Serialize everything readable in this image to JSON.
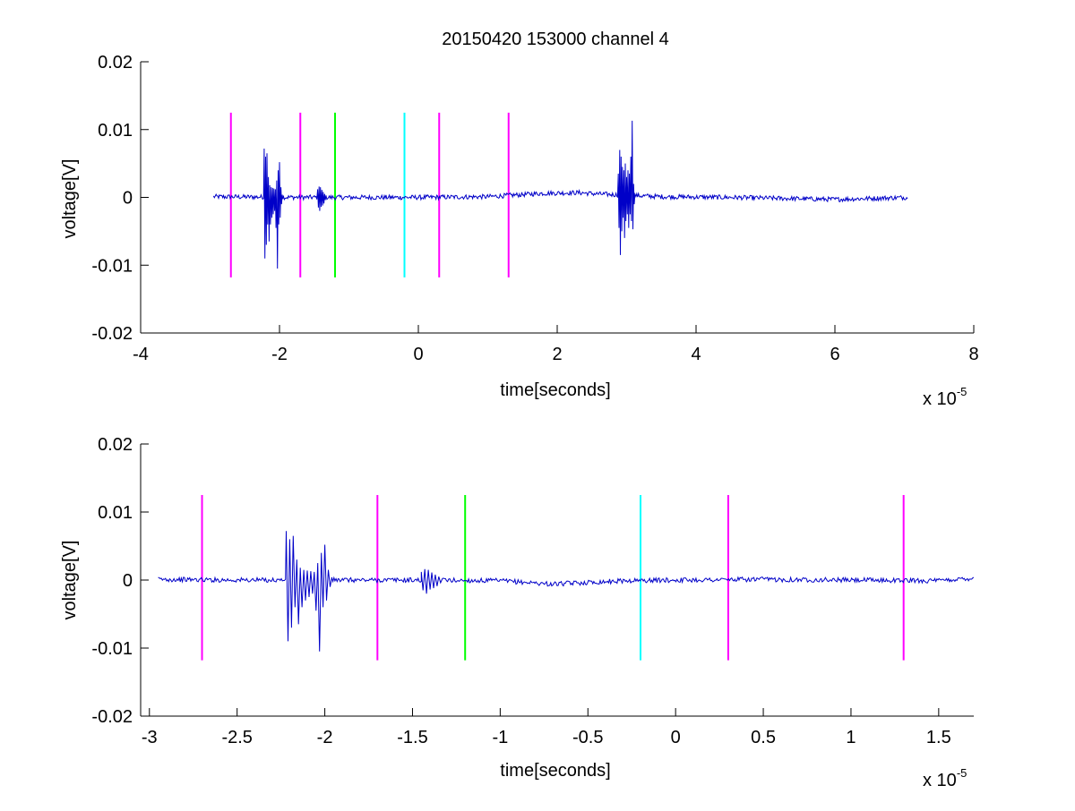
{
  "title": "20150420 153000 channel 4",
  "colors": {
    "signal": "#0000c8",
    "magenta": "#ff00ff",
    "green": "#00ff00",
    "cyan": "#00ffff",
    "axis": "#000000"
  },
  "chart_data": [
    {
      "type": "line",
      "title": "20150420 153000 channel 4",
      "xlabel": "time[seconds]",
      "ylabel": "voltage[V]",
      "x_multiplier_label": "x 10",
      "x_multiplier_exponent": "-5",
      "xlim": [
        -4,
        8
      ],
      "ylim": [
        -0.02,
        0.02
      ],
      "x_ticks": [
        -4,
        -2,
        0,
        2,
        4,
        6,
        8
      ],
      "x_tick_labels": [
        "-4",
        "-2",
        "0",
        "2",
        "4",
        "6",
        "8"
      ],
      "y_ticks": [
        0.02,
        0.01,
        0,
        -0.01,
        -0.02
      ],
      "y_tick_labels": [
        "0.02",
        "0.01",
        "0",
        "-0.01",
        "-0.02"
      ],
      "grid": false,
      "signal_range": [
        -2.95,
        7.05
      ],
      "markers": [
        {
          "x": -2.7,
          "color": "magenta",
          "ymin": -0.0118,
          "ymax": 0.0125
        },
        {
          "x": -1.7,
          "color": "magenta",
          "ymin": -0.0118,
          "ymax": 0.0125
        },
        {
          "x": -1.2,
          "color": "green",
          "ymin": -0.0118,
          "ymax": 0.0125
        },
        {
          "x": -0.2,
          "color": "cyan",
          "ymin": -0.0118,
          "ymax": 0.0125
        },
        {
          "x": 0.3,
          "color": "magenta",
          "ymin": -0.0118,
          "ymax": 0.0125
        },
        {
          "x": 1.3,
          "color": "magenta",
          "ymin": -0.0118,
          "ymax": 0.0125
        }
      ],
      "bursts": [
        {
          "x": [
            -2.22,
            -2.21,
            -2.2,
            -2.19,
            -2.18,
            -2.17,
            -2.16,
            -2.15,
            -2.14,
            -2.13,
            -2.12,
            -2.11,
            -2.1,
            -2.09,
            -2.08,
            -2.07,
            -2.06,
            -2.05,
            -2.04,
            -2.03,
            -2.02,
            -2.01,
            -2.0,
            -1.99,
            -1.98,
            -1.97,
            -1.96
          ],
          "y": [
            0.0072,
            -0.009,
            0.006,
            -0.007,
            0.0065,
            -0.004,
            0.003,
            -0.0065,
            0.0018,
            -0.004,
            0.0015,
            -0.003,
            0.0014,
            -0.0025,
            0.0013,
            -0.002,
            0.0012,
            -0.0045,
            0.0025,
            -0.0105,
            0.004,
            -0.004,
            0.0052,
            -0.003,
            0.0015,
            -0.001,
            0.0004
          ]
        },
        {
          "x": [
            -1.45,
            -1.44,
            -1.43,
            -1.42,
            -1.41,
            -1.4,
            -1.39,
            -1.38,
            -1.37,
            -1.36,
            -1.35,
            -1.34,
            -1.33
          ],
          "y": [
            0.0012,
            -0.0015,
            0.0016,
            -0.002,
            0.0015,
            -0.0014,
            0.0011,
            -0.0012,
            0.0008,
            -0.0009,
            0.0005,
            -0.0004,
            0.0002
          ]
        },
        {
          "x": [
            2.88,
            2.89,
            2.9,
            2.91,
            2.92,
            2.93,
            2.94,
            2.95,
            2.96,
            2.97,
            2.98,
            2.99,
            3.0,
            3.01,
            3.02,
            3.03,
            3.04,
            3.05,
            3.06,
            3.07,
            3.08,
            3.09,
            3.1,
            3.11,
            3.12
          ],
          "y": [
            0.0035,
            -0.0045,
            0.007,
            -0.0085,
            0.006,
            -0.005,
            0.0045,
            -0.003,
            0.004,
            -0.006,
            0.005,
            -0.0035,
            0.003,
            -0.0025,
            0.004,
            -0.0045,
            0.0035,
            -0.0025,
            0.006,
            -0.0035,
            0.0113,
            -0.0047,
            0.002,
            -0.001,
            0.0005
          ]
        }
      ],
      "baseline": {
        "x": [
          -2.95,
          -1.5,
          0.0,
          1.0,
          1.8,
          2.3,
          2.6,
          3.5,
          4.5,
          6.0,
          7.05
        ],
        "y": [
          0.0001,
          0.0,
          0.0,
          0.0001,
          0.0006,
          0.0007,
          0.0005,
          0.0001,
          0.0,
          -0.0003,
          0.0
        ]
      }
    },
    {
      "type": "line",
      "title": "",
      "xlabel": "time[seconds]",
      "ylabel": "voltage[V]",
      "x_multiplier_label": "x 10",
      "x_multiplier_exponent": "-5",
      "xlim": [
        -3.05,
        1.7
      ],
      "ylim": [
        -0.02,
        0.02
      ],
      "x_ticks": [
        -3,
        -2.5,
        -2,
        -1.5,
        -1,
        -0.5,
        0,
        0.5,
        1,
        1.5
      ],
      "x_tick_labels": [
        "-3",
        "-2.5",
        "-2",
        "-1.5",
        "-1",
        "-0.5",
        "0",
        "0.5",
        "1",
        "1.5"
      ],
      "y_ticks": [
        0.02,
        0.01,
        0,
        -0.01,
        -0.02
      ],
      "y_tick_labels": [
        "0.02",
        "0.01",
        "0",
        "-0.01",
        "-0.02"
      ],
      "grid": false,
      "signal_range": [
        -2.95,
        1.7
      ],
      "markers": [
        {
          "x": -2.7,
          "color": "magenta",
          "ymin": -0.0118,
          "ymax": 0.0125
        },
        {
          "x": -1.7,
          "color": "magenta",
          "ymin": -0.0118,
          "ymax": 0.0125
        },
        {
          "x": -1.2,
          "color": "green",
          "ymin": -0.0118,
          "ymax": 0.0125
        },
        {
          "x": -0.2,
          "color": "cyan",
          "ymin": -0.0118,
          "ymax": 0.0125
        },
        {
          "x": 0.3,
          "color": "magenta",
          "ymin": -0.0118,
          "ymax": 0.0125
        },
        {
          "x": 1.3,
          "color": "magenta",
          "ymin": -0.0118,
          "ymax": 0.0125
        }
      ],
      "bursts": [
        {
          "x": [
            -2.22,
            -2.21,
            -2.2,
            -2.19,
            -2.18,
            -2.17,
            -2.16,
            -2.15,
            -2.14,
            -2.13,
            -2.12,
            -2.11,
            -2.1,
            -2.09,
            -2.08,
            -2.07,
            -2.06,
            -2.05,
            -2.04,
            -2.03,
            -2.02,
            -2.01,
            -2.0,
            -1.99,
            -1.98,
            -1.97,
            -1.96
          ],
          "y": [
            0.0072,
            -0.009,
            0.006,
            -0.007,
            0.0065,
            -0.004,
            0.003,
            -0.0065,
            0.0018,
            -0.004,
            0.0015,
            -0.003,
            0.0014,
            -0.0025,
            0.0013,
            -0.002,
            0.0012,
            -0.0045,
            0.0025,
            -0.0105,
            0.004,
            -0.004,
            0.0052,
            -0.003,
            0.0015,
            -0.001,
            0.0004
          ]
        },
        {
          "x": [
            -1.45,
            -1.44,
            -1.43,
            -1.42,
            -1.41,
            -1.4,
            -1.39,
            -1.38,
            -1.37,
            -1.36,
            -1.35,
            -1.34,
            -1.33
          ],
          "y": [
            0.0012,
            -0.0015,
            0.0016,
            -0.002,
            0.0015,
            -0.0014,
            0.0011,
            -0.0012,
            0.0008,
            -0.0009,
            0.0005,
            -0.0004,
            0.0002
          ]
        }
      ],
      "baseline": {
        "x": [
          -2.95,
          -2.5,
          -1.5,
          -1.0,
          -0.7,
          -0.3,
          0.0,
          0.5,
          1.0,
          1.5,
          1.7
        ],
        "y": [
          0.0001,
          0.0,
          0.0,
          -0.0001,
          -0.0006,
          -0.0001,
          0.0,
          0.0001,
          0.0,
          -0.0001,
          0.0003
        ]
      }
    }
  ]
}
